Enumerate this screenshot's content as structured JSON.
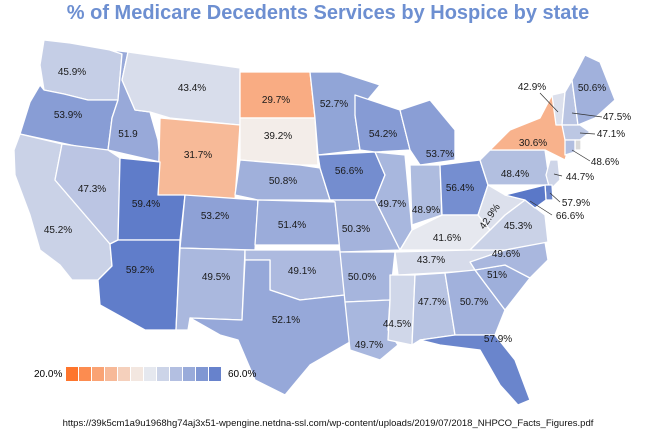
{
  "title": "% of Medicare Decedents Services by Hospice by state",
  "source": "https://39k5cm1a9u1968hg74aj3x51-wpengine.netdna-ssl.com/wp-content/uploads/2019/07/2018_NHPCO_Facts_Figures.pdf",
  "legend": {
    "min_label": "20.0%",
    "max_label": "60.0%",
    "min_value": 20.0,
    "max_value": 60.0,
    "low_color": "#ff6a1a",
    "mid_color": "#f2f2f2",
    "high_color": "#5a78c8"
  },
  "states": [
    {
      "id": "WA",
      "label": "45.9%",
      "value": 45.9
    },
    {
      "id": "OR",
      "label": "53.9%",
      "value": 53.9
    },
    {
      "id": "CA",
      "label": "45.2%",
      "value": 45.2
    },
    {
      "id": "ID",
      "label": "51.9",
      "value": 51.9
    },
    {
      "id": "NV",
      "label": "47.3%",
      "value": 47.3
    },
    {
      "id": "MT",
      "label": "43.4%",
      "value": 43.4
    },
    {
      "id": "WY",
      "label": "31.7%",
      "value": 31.7
    },
    {
      "id": "UT",
      "label": "59.4%",
      "value": 59.4
    },
    {
      "id": "AZ",
      "label": "59.2%",
      "value": 59.2
    },
    {
      "id": "CO",
      "label": "53.2%",
      "value": 53.2
    },
    {
      "id": "NM",
      "label": "49.5%",
      "value": 49.5
    },
    {
      "id": "ND",
      "label": "29.7%",
      "value": 29.7
    },
    {
      "id": "SD",
      "label": "39.2%",
      "value": 39.2
    },
    {
      "id": "NE",
      "label": "50.8%",
      "value": 50.8
    },
    {
      "id": "KS",
      "label": "51.4%",
      "value": 51.4
    },
    {
      "id": "OK",
      "label": "49.1%",
      "value": 49.1
    },
    {
      "id": "TX",
      "label": "52.1%",
      "value": 52.1
    },
    {
      "id": "MN",
      "label": "52.7%",
      "value": 52.7
    },
    {
      "id": "IA",
      "label": "56.6%",
      "value": 56.6
    },
    {
      "id": "MO",
      "label": "50.3%",
      "value": 50.3
    },
    {
      "id": "AR",
      "label": "50.0%",
      "value": 50.0
    },
    {
      "id": "LA",
      "label": "49.7%",
      "value": 49.7
    },
    {
      "id": "WI",
      "label": "54.2%",
      "value": 54.2
    },
    {
      "id": "IL",
      "label": "49.7%",
      "value": 49.7
    },
    {
      "id": "MI",
      "label": "53.7%",
      "value": 53.7
    },
    {
      "id": "IN",
      "label": "48.9%",
      "value": 48.9
    },
    {
      "id": "OH",
      "label": "56.4%",
      "value": 56.4
    },
    {
      "id": "KY",
      "label": "41.6%",
      "value": 41.6
    },
    {
      "id": "TN",
      "label": "43.7%",
      "value": 43.7
    },
    {
      "id": "MS",
      "label": "44.5%",
      "value": 44.5
    },
    {
      "id": "AL",
      "label": "47.7%",
      "value": 47.7
    },
    {
      "id": "GA",
      "label": "50.7%",
      "value": 50.7
    },
    {
      "id": "FL",
      "label": "57.9%",
      "value": 57.9
    },
    {
      "id": "SC",
      "label": "51%",
      "value": 51.0
    },
    {
      "id": "NC",
      "label": "49.6%",
      "value": 49.6
    },
    {
      "id": "VA",
      "label": "45.3%",
      "value": 45.3
    },
    {
      "id": "WV",
      "label": "42.9%",
      "value": 42.9
    },
    {
      "id": "PA",
      "label": "48.4%",
      "value": 48.4
    },
    {
      "id": "NY",
      "label": "30.6%",
      "value": 30.6
    },
    {
      "id": "VT",
      "label": "42.9%",
      "value": 42.9
    },
    {
      "id": "NH",
      "label": "47.5%",
      "value": 47.5
    },
    {
      "id": "ME",
      "label": "50.6%",
      "value": 50.6
    },
    {
      "id": "MA",
      "label": "47.1%",
      "value": 47.1
    },
    {
      "id": "RI",
      "label": "",
      "value": null
    },
    {
      "id": "CT",
      "label": "48.6%",
      "value": 48.6
    },
    {
      "id": "NJ",
      "label": "44.7%",
      "value": 44.7
    },
    {
      "id": "DE",
      "label": "57.9%",
      "value": 57.9
    },
    {
      "id": "MD",
      "label": "66.6%",
      "value": 66.6
    }
  ]
}
